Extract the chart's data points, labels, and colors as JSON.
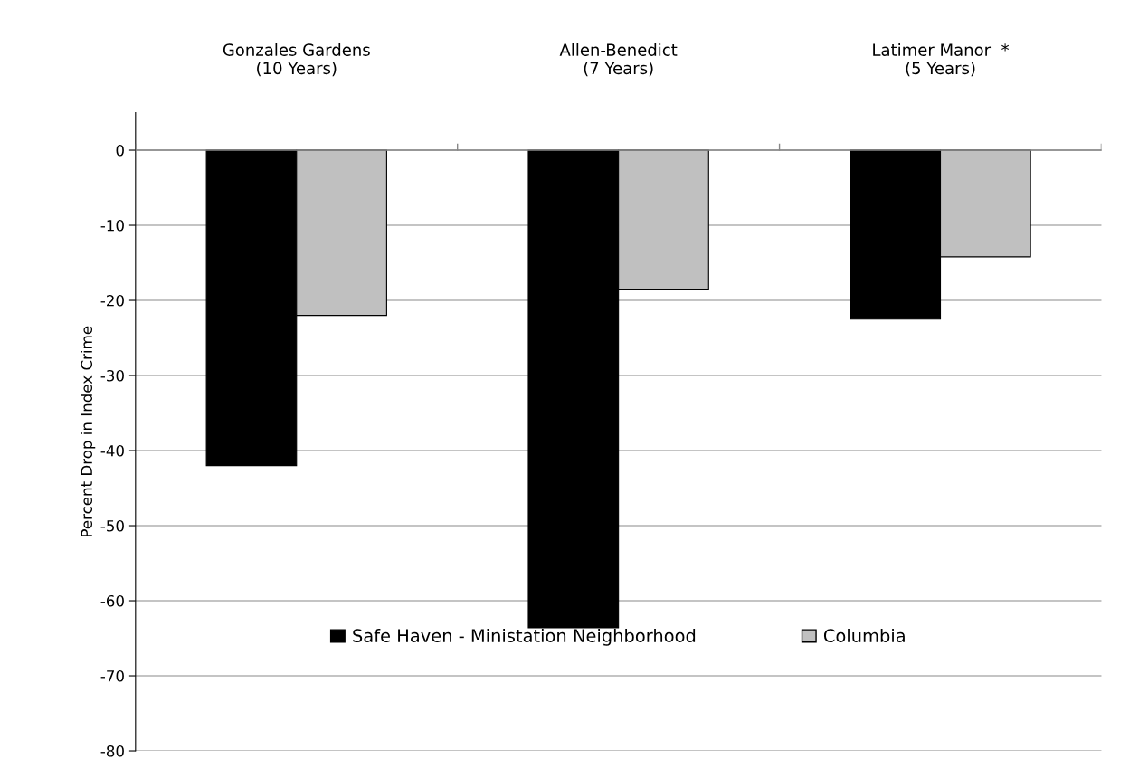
{
  "chart_data": {
    "type": "bar",
    "ylabel": "Percent Drop in Index Crime",
    "categories": [
      "Gonzales Gardens\n(10 Years)",
      "Allen-Benedict\n(7 Years)",
      "Latimer Manor  *\n(5 Years)"
    ],
    "series": [
      {
        "name": "Safe Haven - Ministation Neighborhood",
        "color": "#000000",
        "values": [
          -42,
          -63.6,
          -22.5
        ]
      },
      {
        "name": "Columbia",
        "color": "#c0c0c0",
        "values": [
          -22,
          -18.5,
          -14.2
        ]
      }
    ],
    "ylim": [
      -80,
      5
    ],
    "yticks": [
      0,
      -10,
      -20,
      -30,
      -40,
      -50,
      -60,
      -70,
      -80
    ],
    "grid": "y",
    "legend": "bottom"
  }
}
